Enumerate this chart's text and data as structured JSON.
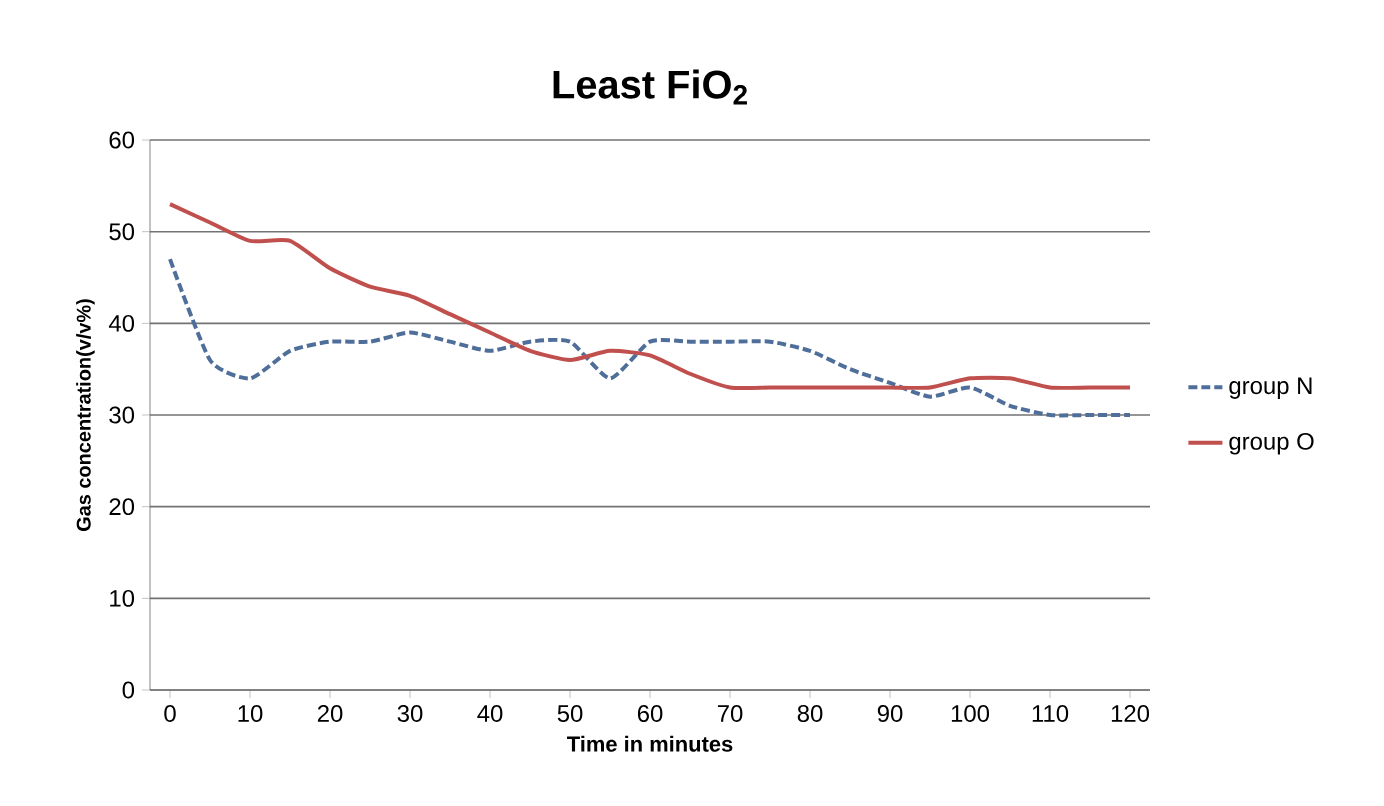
{
  "chart_data": {
    "type": "line",
    "title": "Least FiO$_{2}$",
    "xlabel": "Time in minutes",
    "ylabel": "Gas concentration(v/v%)",
    "x": [
      0,
      5,
      10,
      15,
      20,
      25,
      30,
      35,
      40,
      45,
      50,
      55,
      60,
      65,
      70,
      75,
      80,
      85,
      90,
      95,
      100,
      105,
      110,
      115,
      120
    ],
    "series": [
      {
        "name": "group N",
        "color": "#4f6f9a",
        "line_style": "dashed",
        "values": [
          47,
          36,
          34,
          37,
          38,
          38,
          39,
          38,
          37,
          38,
          38,
          34,
          38,
          38,
          38,
          38,
          37,
          35,
          33.5,
          32,
          33,
          31,
          30,
          30,
          30
        ]
      },
      {
        "name": "group O",
        "color": "#c0504d",
        "line_style": "solid",
        "values": [
          53,
          51,
          49,
          49,
          46,
          44,
          43,
          41,
          39,
          37,
          36,
          37,
          36.5,
          34.5,
          33,
          33,
          33,
          33,
          33,
          33,
          34,
          34,
          33,
          33,
          33
        ]
      }
    ],
    "xlim": [
      -2.5,
      122.5
    ],
    "xticks": [
      0,
      10,
      20,
      30,
      40,
      50,
      60,
      70,
      80,
      90,
      100,
      110,
      120
    ],
    "ylim": [
      0,
      60
    ],
    "yticks": [
      0,
      10,
      20,
      30,
      40,
      50,
      60
    ],
    "grid": "y",
    "legend": "right",
    "marker": "none"
  }
}
